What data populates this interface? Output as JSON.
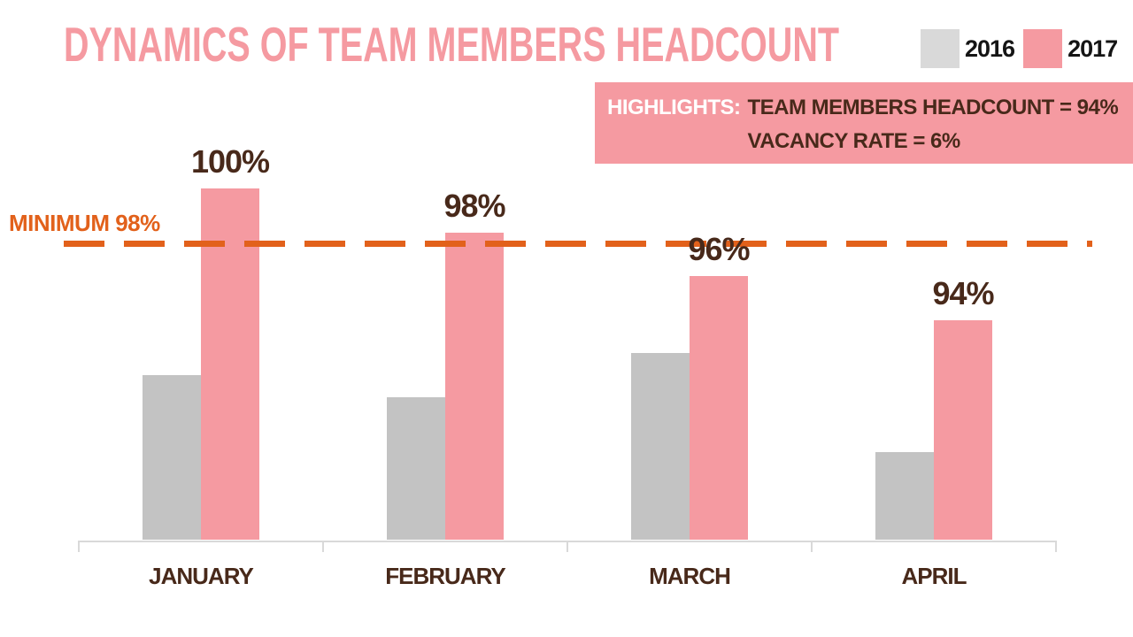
{
  "title": "DYNAMICS OF TEAM MEMBERS HEADCOUNT",
  "highlights": {
    "label": "HIGHLIGHTS:",
    "lines": [
      "TEAM MEMBERS HEADCOUNT = 94%",
      "VACANCY RATE = 6%"
    ]
  },
  "chart_data": {
    "type": "bar",
    "title": "DYNAMICS OF TEAM MEMBERS HEADCOUNT",
    "categories": [
      "JANUARY",
      "FEBRUARY",
      "MARCH",
      "APRIL"
    ],
    "series": [
      {
        "name": "2016",
        "color": "#c3c3c3",
        "legend_color": "#d9d9d9",
        "values": [
          91.5,
          90.5,
          92.5,
          88
        ],
        "values_estimated": true,
        "show_value_labels": false
      },
      {
        "name": "2017",
        "color": "#f59aa1",
        "values": [
          100,
          98,
          96,
          94
        ],
        "value_labels": [
          "100%",
          "98%",
          "96%",
          "94%"
        ],
        "show_value_labels": true
      }
    ],
    "reference_line": {
      "label": "MINIMUM 98%",
      "value": 98,
      "style": "dashed",
      "color": "#e2611b"
    },
    "ylim": [
      84,
      102
    ],
    "grid": false,
    "legend_position": "top-right",
    "xlabel": "",
    "ylabel": ""
  },
  "colors": {
    "pink": "#f59aa1",
    "bar-gray": "#c3c3c3",
    "legend-gray": "#d9d9d9",
    "orange": "#e2611b",
    "brown": "#48291a",
    "legend-text": "#151515",
    "axis": "#d9d9d9",
    "background": "#ffffff",
    "highlights-text": "#ffffff"
  }
}
